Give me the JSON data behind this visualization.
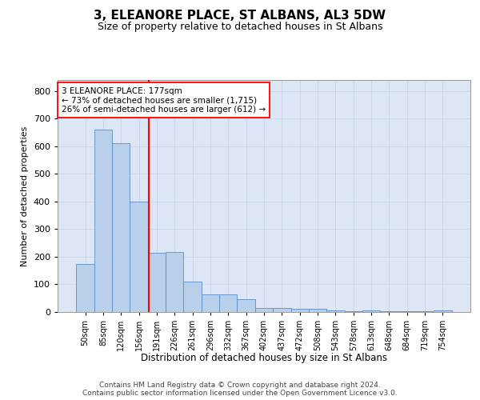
{
  "title": "3, ELEANORE PLACE, ST ALBANS, AL3 5DW",
  "subtitle": "Size of property relative to detached houses in St Albans",
  "xlabel": "Distribution of detached houses by size in St Albans",
  "ylabel": "Number of detached properties",
  "footer_line1": "Contains HM Land Registry data © Crown copyright and database right 2024.",
  "footer_line2": "Contains public sector information licensed under the Open Government Licence v3.0.",
  "annotation_line1": "3 ELEANORE PLACE: 177sqm",
  "annotation_line2": "← 73% of detached houses are smaller (1,715)",
  "annotation_line3": "26% of semi-detached houses are larger (612) →",
  "bar_values": [
    175,
    660,
    610,
    400,
    215,
    218,
    110,
    63,
    63,
    45,
    15,
    15,
    12,
    12,
    7,
    2,
    7,
    2,
    2,
    2,
    5
  ],
  "bin_labels": [
    "50sqm",
    "85sqm",
    "120sqm",
    "156sqm",
    "191sqm",
    "226sqm",
    "261sqm",
    "296sqm",
    "332sqm",
    "367sqm",
    "402sqm",
    "437sqm",
    "472sqm",
    "508sqm",
    "543sqm",
    "578sqm",
    "613sqm",
    "648sqm",
    "684sqm",
    "719sqm",
    "754sqm"
  ],
  "bar_color": "#b8d0ea",
  "bar_edge_color": "#5b8cc8",
  "grid_color": "#c8d4e4",
  "bg_color": "#dce6f4",
  "red_line_x": 3.55,
  "ylim": [
    0,
    840
  ],
  "yticks": [
    0,
    100,
    200,
    300,
    400,
    500,
    600,
    700,
    800
  ],
  "title_fontsize": 11,
  "subtitle_fontsize": 9,
  "footer_fontsize": 6.5
}
